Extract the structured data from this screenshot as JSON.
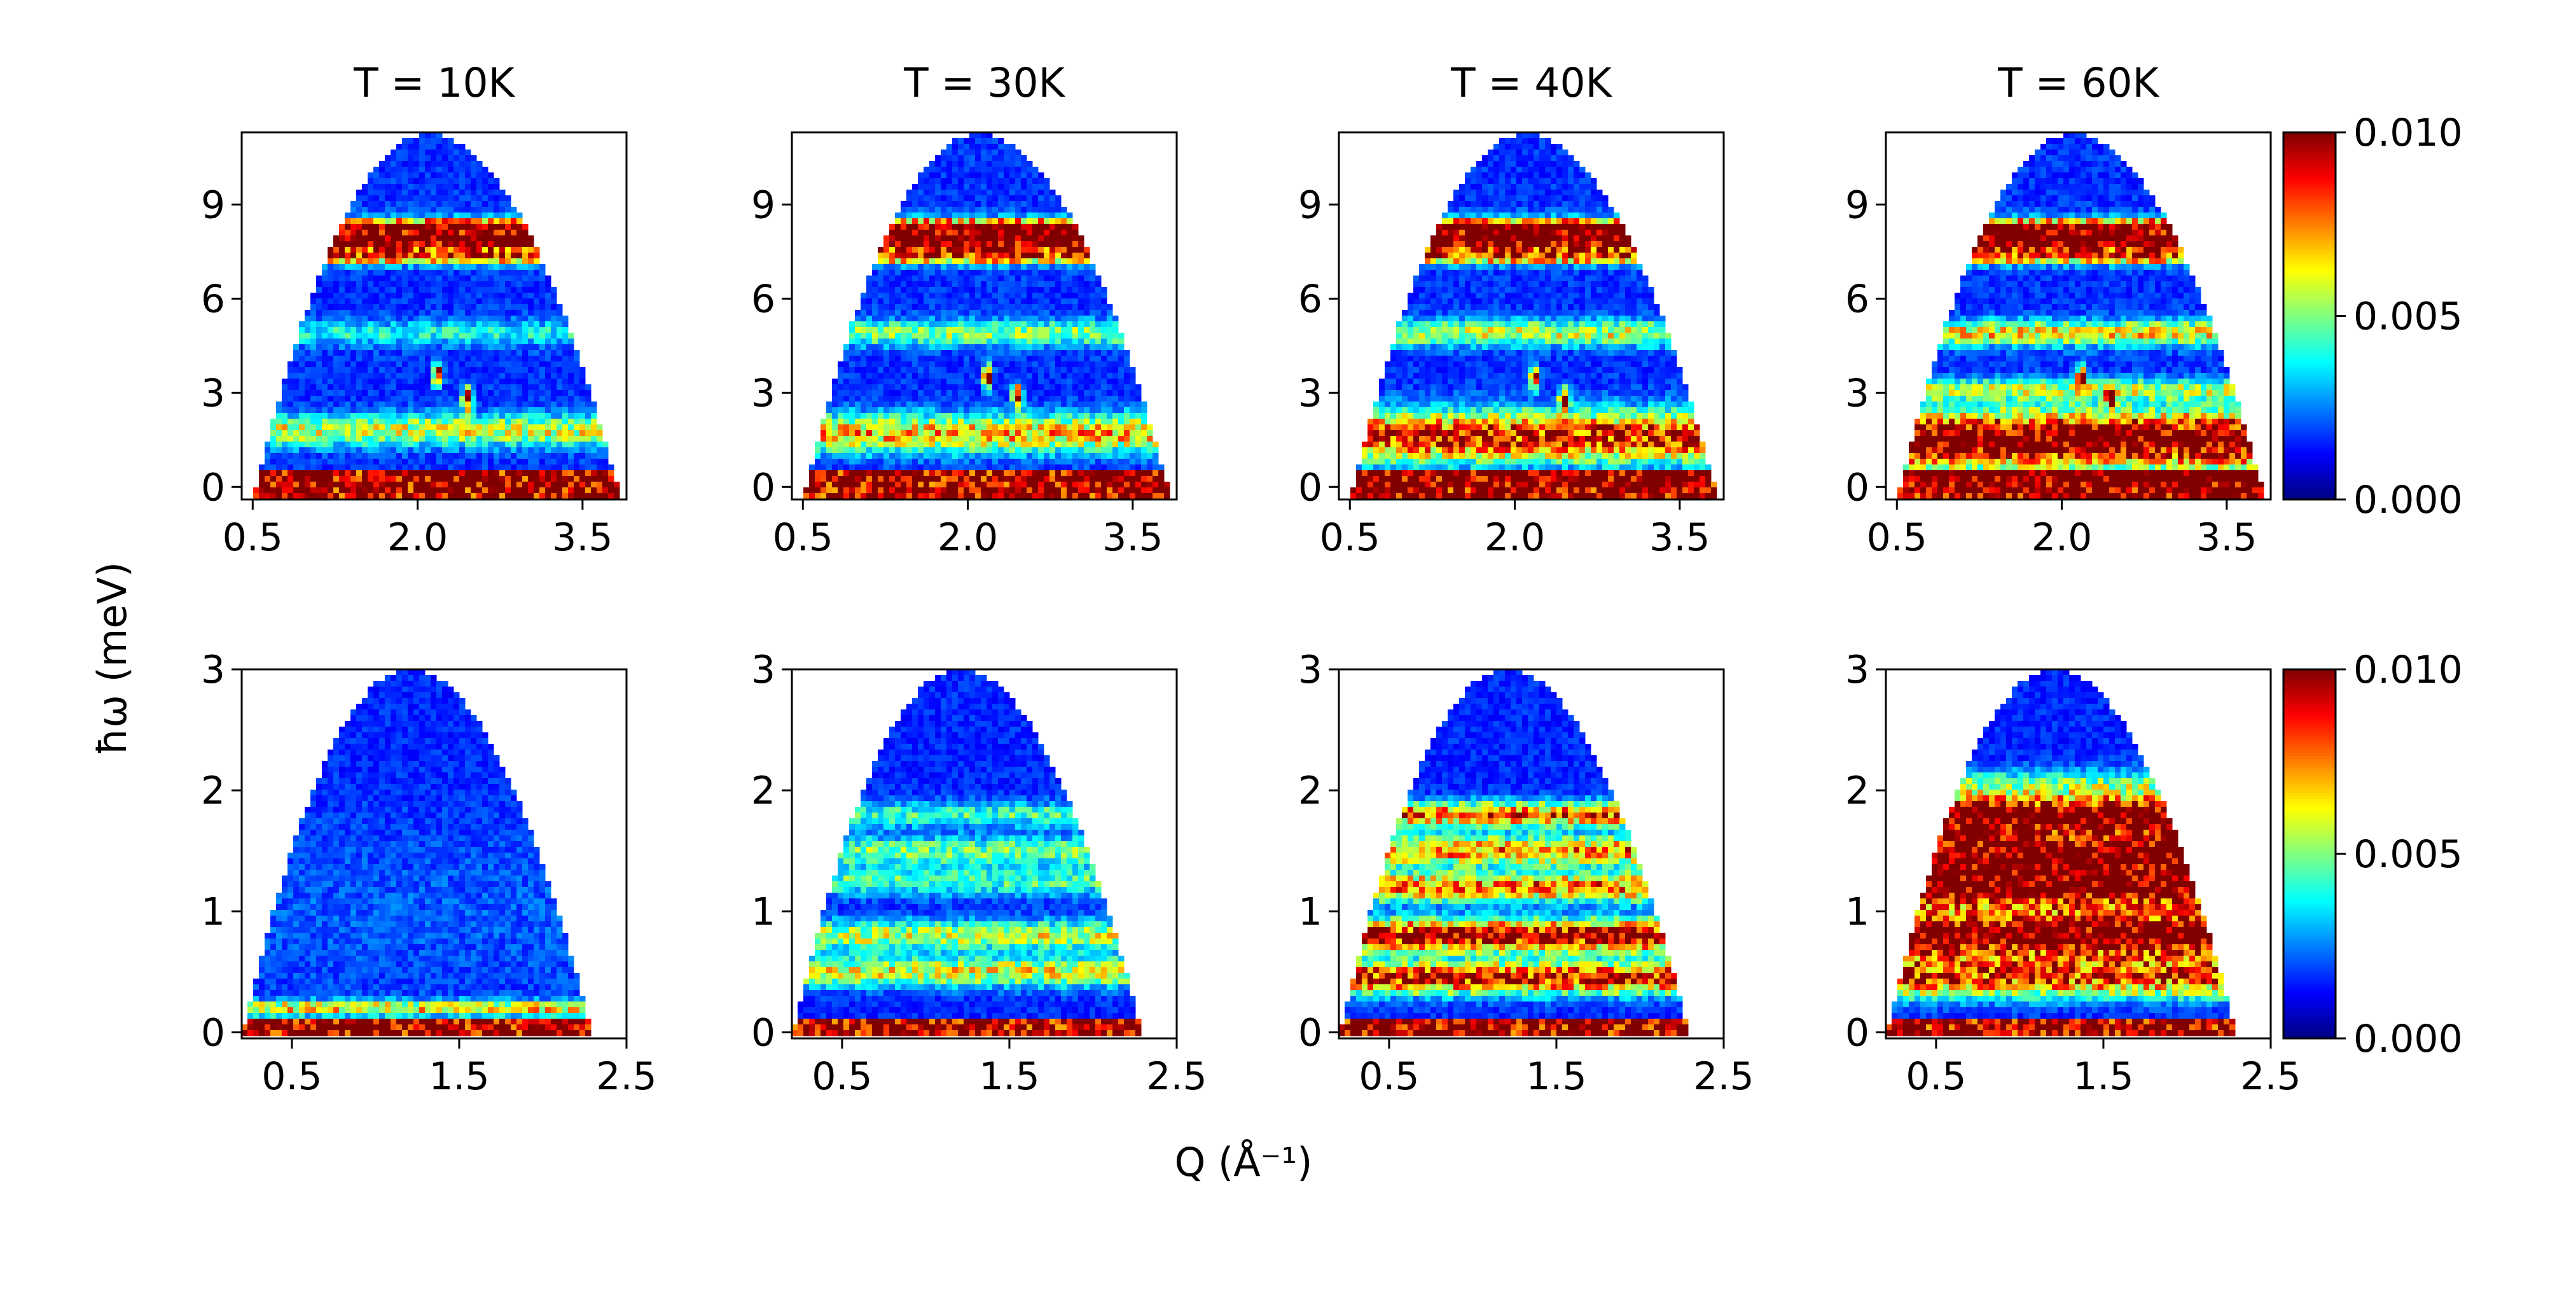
{
  "chart_data": {
    "type": "heatmap",
    "panel_titles": [
      "T = 10K",
      "T = 30K",
      "T = 40K",
      "T = 60K"
    ],
    "xlabel": "Q (Å⁻¹)",
    "ylabel": "ħω (meV)",
    "colormap": "jet",
    "colorbar": {
      "range": [
        0.0,
        0.01
      ],
      "tick_labels": [
        "0.000",
        "0.005",
        "0.010"
      ]
    },
    "rows": [
      {
        "name": "top",
        "xlim": [
          0.4,
          3.9
        ],
        "ylim": [
          -0.4,
          11.3
        ],
        "xticks": [
          0.5,
          2.0,
          3.5
        ],
        "xtick_labels": [
          "0.5",
          "2.0",
          "3.5"
        ],
        "yticks": [
          0,
          3,
          6,
          9
        ],
        "ytick_labels": [
          "0",
          "3",
          "6",
          "9"
        ],
        "coverage": {
          "q_left": 0.5,
          "q_right": 3.85,
          "q_apex": 2.1,
          "e_top": 11.25,
          "e_floor": -0.4
        },
        "panels": [
          {
            "temperature": "T = 10K",
            "background": 0.0017,
            "elastic_band_intensity": 0.01,
            "bands": [
              {
                "energy": 7.9,
                "width": 0.5,
                "intensity": 0.01
              },
              {
                "energy": 8.35,
                "width": 0.15,
                "intensity": 0.005
              },
              {
                "energy": 7.3,
                "width": 0.2,
                "intensity": 0.0045
              },
              {
                "energy": 4.9,
                "width": 0.4,
                "intensity": 0.0022
              },
              {
                "energy": 1.8,
                "width": 0.5,
                "intensity": 0.0042
              }
            ],
            "spots": [
              {
                "q": 2.18,
                "e": 3.6,
                "intensity": 0.01
              },
              {
                "q": 2.45,
                "e": 2.8,
                "intensity": 0.009
              }
            ]
          },
          {
            "temperature": "T = 30K",
            "background": 0.0017,
            "elastic_band_intensity": 0.01,
            "bands": [
              {
                "energy": 7.9,
                "width": 0.5,
                "intensity": 0.01
              },
              {
                "energy": 8.35,
                "width": 0.15,
                "intensity": 0.005
              },
              {
                "energy": 7.3,
                "width": 0.2,
                "intensity": 0.0045
              },
              {
                "energy": 4.9,
                "width": 0.4,
                "intensity": 0.0035
              },
              {
                "energy": 1.7,
                "width": 0.6,
                "intensity": 0.0052
              }
            ],
            "spots": [
              {
                "q": 2.18,
                "e": 3.5,
                "intensity": 0.01
              },
              {
                "q": 2.45,
                "e": 2.9,
                "intensity": 0.009
              }
            ]
          },
          {
            "temperature": "T = 40K",
            "background": 0.0017,
            "elastic_band_intensity": 0.01,
            "bands": [
              {
                "energy": 7.9,
                "width": 0.5,
                "intensity": 0.01
              },
              {
                "energy": 8.35,
                "width": 0.15,
                "intensity": 0.005
              },
              {
                "energy": 7.3,
                "width": 0.2,
                "intensity": 0.0045
              },
              {
                "energy": 4.9,
                "width": 0.4,
                "intensity": 0.0042
              },
              {
                "energy": 1.6,
                "width": 0.8,
                "intensity": 0.0072
              }
            ],
            "spots": [
              {
                "q": 2.18,
                "e": 3.5,
                "intensity": 0.01
              },
              {
                "q": 2.45,
                "e": 2.8,
                "intensity": 0.009
              }
            ]
          },
          {
            "temperature": "T = 60K",
            "background": 0.0017,
            "elastic_band_intensity": 0.01,
            "bands": [
              {
                "energy": 7.9,
                "width": 0.5,
                "intensity": 0.01
              },
              {
                "energy": 8.35,
                "width": 0.15,
                "intensity": 0.005
              },
              {
                "energy": 7.3,
                "width": 0.2,
                "intensity": 0.0045
              },
              {
                "energy": 4.9,
                "width": 0.4,
                "intensity": 0.0048
              },
              {
                "energy": 3.1,
                "width": 0.35,
                "intensity": 0.0035
              },
              {
                "energy": 1.5,
                "width": 0.9,
                "intensity": 0.0095
              }
            ],
            "spots": [
              {
                "q": 2.18,
                "e": 3.5,
                "intensity": 0.01
              },
              {
                "q": 2.45,
                "e": 2.8,
                "intensity": 0.009
              }
            ]
          }
        ]
      },
      {
        "name": "bottom",
        "xlim": [
          0.2,
          2.5
        ],
        "ylim": [
          -0.05,
          3.0
        ],
        "xticks": [
          0.5,
          1.5,
          2.5
        ],
        "xtick_labels": [
          "0.5",
          "1.5",
          "2.5"
        ],
        "yticks": [
          0,
          1,
          2,
          3
        ],
        "ytick_labels": [
          "0",
          "1",
          "2",
          "3"
        ],
        "coverage": {
          "q_left": 0.2,
          "q_right": 2.3,
          "q_apex": 1.2,
          "e_top": 3.0,
          "e_floor": -0.05
        },
        "panels": [
          {
            "temperature": "T = 10K",
            "background": 0.0016,
            "elastic_band_intensity": 0.01,
            "bands": [
              {
                "energy": 0.2,
                "width": 0.06,
                "intensity": 0.005
              },
              {
                "energy": 1.0,
                "width": 0.8,
                "intensity": 0.0005
              }
            ]
          },
          {
            "temperature": "T = 30K",
            "background": 0.0016,
            "elastic_band_intensity": 0.01,
            "bands": [
              {
                "energy": 0.5,
                "width": 0.12,
                "intensity": 0.0045
              },
              {
                "energy": 0.8,
                "width": 0.12,
                "intensity": 0.0042
              },
              {
                "energy": 1.25,
                "width": 0.12,
                "intensity": 0.0028
              },
              {
                "energy": 1.5,
                "width": 0.12,
                "intensity": 0.0032
              },
              {
                "energy": 1.8,
                "width": 0.1,
                "intensity": 0.0028
              }
            ]
          },
          {
            "temperature": "T = 40K",
            "background": 0.0016,
            "elastic_band_intensity": 0.01,
            "bands": [
              {
                "energy": 0.45,
                "width": 0.13,
                "intensity": 0.0075
              },
              {
                "energy": 0.8,
                "width": 0.13,
                "intensity": 0.0085
              },
              {
                "energy": 1.2,
                "width": 0.12,
                "intensity": 0.0062
              },
              {
                "energy": 1.5,
                "width": 0.12,
                "intensity": 0.006
              },
              {
                "energy": 1.8,
                "width": 0.1,
                "intensity": 0.0065
              }
            ]
          },
          {
            "temperature": "T = 60K",
            "background": 0.0016,
            "elastic_band_intensity": 0.01,
            "bands": [
              {
                "energy": 0.45,
                "width": 0.16,
                "intensity": 0.0065
              },
              {
                "energy": 0.8,
                "width": 0.2,
                "intensity": 0.0095
              },
              {
                "energy": 1.2,
                "width": 0.18,
                "intensity": 0.009
              },
              {
                "energy": 1.5,
                "width": 0.18,
                "intensity": 0.009
              },
              {
                "energy": 1.8,
                "width": 0.15,
                "intensity": 0.0095
              },
              {
                "energy": 2.05,
                "width": 0.12,
                "intensity": 0.003
              }
            ]
          }
        ]
      }
    ]
  }
}
